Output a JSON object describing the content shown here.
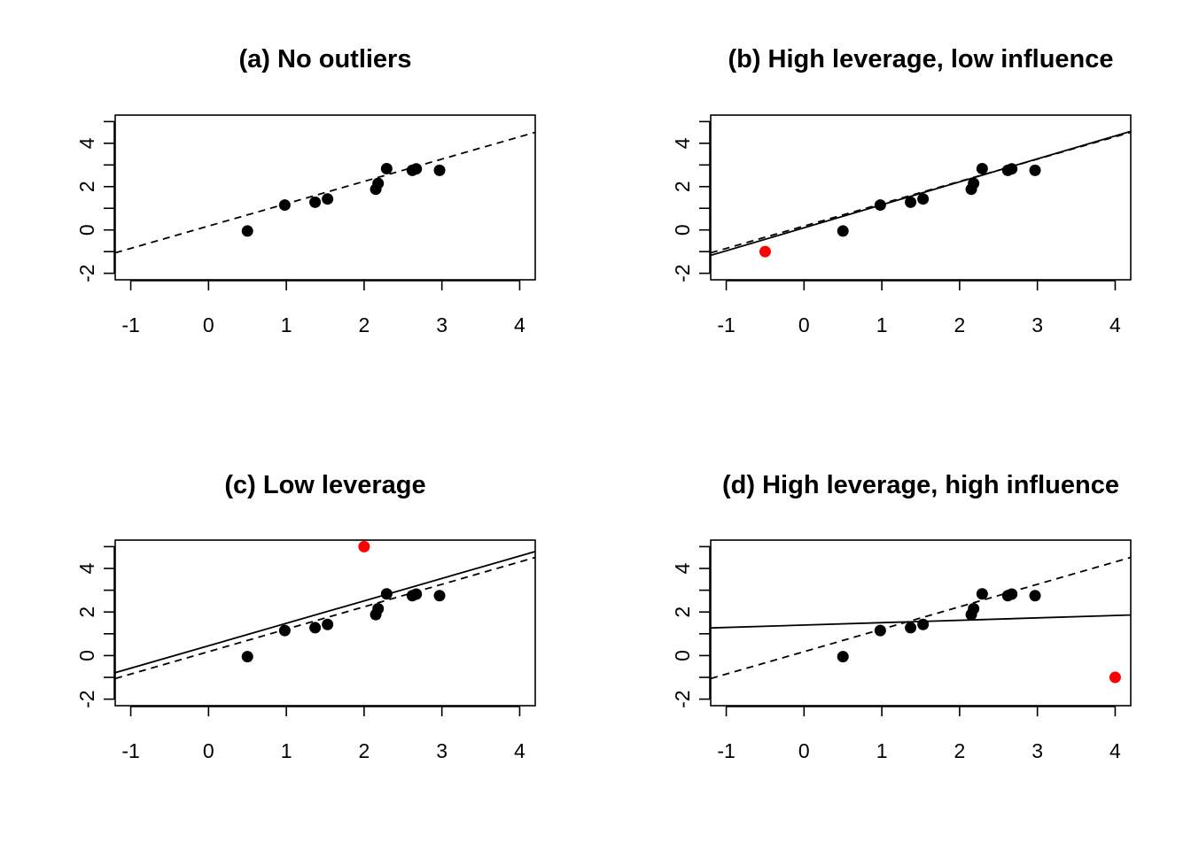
{
  "colors": {
    "point": "#000000",
    "outlier": "#ff0000",
    "line": "#000000"
  },
  "chart_data": [
    {
      "type": "scatter",
      "title": "(a) No outliers",
      "xlabel": "",
      "ylabel": "",
      "xlim": [
        -1.2,
        4.2
      ],
      "ylim": [
        -2.3,
        5.3
      ],
      "x_ticks": [
        -1,
        0,
        1,
        2,
        3,
        4
      ],
      "y_ticks": [
        -2,
        0,
        2,
        4
      ],
      "y_minor_ticks": [
        -1,
        1,
        3,
        5
      ],
      "points": [
        {
          "x": 0.5,
          "y": -0.05
        },
        {
          "x": 0.98,
          "y": 1.15
        },
        {
          "x": 1.37,
          "y": 1.28
        },
        {
          "x": 1.53,
          "y": 1.43
        },
        {
          "x": 2.15,
          "y": 1.88
        },
        {
          "x": 2.18,
          "y": 2.15
        },
        {
          "x": 2.29,
          "y": 2.83
        },
        {
          "x": 2.62,
          "y": 2.75
        },
        {
          "x": 2.67,
          "y": 2.82
        },
        {
          "x": 2.97,
          "y": 2.75
        }
      ],
      "outlier": null,
      "lines": [
        {
          "style": "dashed",
          "intercept": 0.18,
          "slope": 1.03
        }
      ]
    },
    {
      "type": "scatter",
      "title": "(b) High leverage, low influence",
      "xlabel": "",
      "ylabel": "",
      "xlim": [
        -1.2,
        4.2
      ],
      "ylim": [
        -2.3,
        5.3
      ],
      "x_ticks": [
        -1,
        0,
        1,
        2,
        3,
        4
      ],
      "y_ticks": [
        -2,
        0,
        2,
        4
      ],
      "y_minor_ticks": [
        -1,
        1,
        3,
        5
      ],
      "points": [
        {
          "x": 0.5,
          "y": -0.05
        },
        {
          "x": 0.98,
          "y": 1.15
        },
        {
          "x": 1.37,
          "y": 1.28
        },
        {
          "x": 1.53,
          "y": 1.43
        },
        {
          "x": 2.15,
          "y": 1.88
        },
        {
          "x": 2.18,
          "y": 2.15
        },
        {
          "x": 2.29,
          "y": 2.83
        },
        {
          "x": 2.62,
          "y": 2.75
        },
        {
          "x": 2.67,
          "y": 2.82
        },
        {
          "x": 2.97,
          "y": 2.75
        }
      ],
      "outlier": {
        "x": -0.5,
        "y": -1.0
      },
      "lines": [
        {
          "style": "dashed",
          "intercept": 0.18,
          "slope": 1.03
        },
        {
          "style": "solid",
          "intercept": 0.1,
          "slope": 1.06
        }
      ]
    },
    {
      "type": "scatter",
      "title": "(c) Low leverage",
      "xlabel": "",
      "ylabel": "",
      "xlim": [
        -1.2,
        4.2
      ],
      "ylim": [
        -2.3,
        5.3
      ],
      "x_ticks": [
        -1,
        0,
        1,
        2,
        3,
        4
      ],
      "y_ticks": [
        -2,
        0,
        2,
        4
      ],
      "y_minor_ticks": [
        -1,
        1,
        3,
        5
      ],
      "points": [
        {
          "x": 0.5,
          "y": -0.05
        },
        {
          "x": 0.98,
          "y": 1.15
        },
        {
          "x": 1.37,
          "y": 1.28
        },
        {
          "x": 1.53,
          "y": 1.43
        },
        {
          "x": 2.15,
          "y": 1.88
        },
        {
          "x": 2.18,
          "y": 2.15
        },
        {
          "x": 2.29,
          "y": 2.83
        },
        {
          "x": 2.62,
          "y": 2.75
        },
        {
          "x": 2.67,
          "y": 2.82
        },
        {
          "x": 2.97,
          "y": 2.75
        }
      ],
      "outlier": {
        "x": 2.0,
        "y": 5.0
      },
      "lines": [
        {
          "style": "dashed",
          "intercept": 0.18,
          "slope": 1.03
        },
        {
          "style": "solid",
          "intercept": 0.45,
          "slope": 1.03
        }
      ]
    },
    {
      "type": "scatter",
      "title": "(d) High leverage, high influence",
      "xlabel": "",
      "ylabel": "",
      "xlim": [
        -1.2,
        4.2
      ],
      "ylim": [
        -2.3,
        5.3
      ],
      "x_ticks": [
        -1,
        0,
        1,
        2,
        3,
        4
      ],
      "y_ticks": [
        -2,
        0,
        2,
        4
      ],
      "y_minor_ticks": [
        -1,
        1,
        3,
        5
      ],
      "points": [
        {
          "x": 0.5,
          "y": -0.05
        },
        {
          "x": 0.98,
          "y": 1.15
        },
        {
          "x": 1.37,
          "y": 1.28
        },
        {
          "x": 1.53,
          "y": 1.43
        },
        {
          "x": 2.15,
          "y": 1.88
        },
        {
          "x": 2.18,
          "y": 2.15
        },
        {
          "x": 2.29,
          "y": 2.83
        },
        {
          "x": 2.62,
          "y": 2.75
        },
        {
          "x": 2.67,
          "y": 2.82
        },
        {
          "x": 2.97,
          "y": 2.75
        }
      ],
      "outlier": {
        "x": 4.0,
        "y": -1.0
      },
      "lines": [
        {
          "style": "dashed",
          "intercept": 0.18,
          "slope": 1.03
        },
        {
          "style": "solid",
          "intercept": 1.4,
          "slope": 0.11
        }
      ]
    }
  ]
}
